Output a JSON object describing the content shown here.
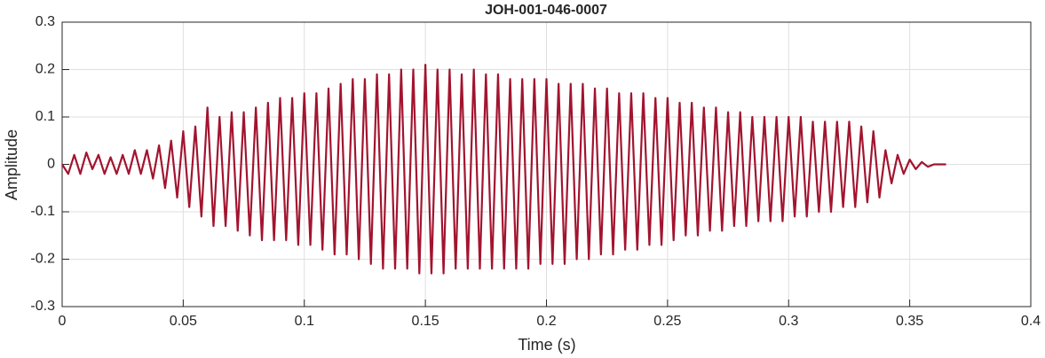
{
  "chart_data": {
    "type": "line",
    "title": "JOH-001-046-0007",
    "x_label": "Time (s)",
    "y_label": "Amplitude",
    "color": "#a2142f",
    "grid": true,
    "xlim": [
      0,
      0.4
    ],
    "xticks": [
      0,
      0.05,
      0.1,
      0.15,
      0.2,
      0.25,
      0.3,
      0.35,
      0.4
    ],
    "ylim": [
      -0.3,
      0.3
    ],
    "yticks": [
      -0.3,
      -0.2,
      -0.1,
      0,
      0.1,
      0.2,
      0.3
    ],
    "x": [
      0,
      0.0025,
      0.005,
      0.0075,
      0.01,
      0.0125,
      0.015,
      0.0175,
      0.02,
      0.0225,
      0.025,
      0.0275,
      0.03,
      0.0325,
      0.035,
      0.0375,
      0.04,
      0.0425,
      0.045,
      0.0475,
      0.05,
      0.0525,
      0.055,
      0.0575,
      0.06,
      0.0625,
      0.065,
      0.0675,
      0.07,
      0.0725,
      0.075,
      0.0775,
      0.08,
      0.0825,
      0.085,
      0.0875,
      0.09,
      0.0925,
      0.095,
      0.0975,
      0.1,
      0.1025,
      0.105,
      0.1075,
      0.11,
      0.1125,
      0.115,
      0.1175,
      0.12,
      0.1225,
      0.125,
      0.1275,
      0.13,
      0.1325,
      0.135,
      0.1375,
      0.14,
      0.1425,
      0.145,
      0.1475,
      0.15,
      0.1525,
      0.155,
      0.1575,
      0.16,
      0.1625,
      0.165,
      0.1675,
      0.17,
      0.1725,
      0.175,
      0.1775,
      0.18,
      0.1825,
      0.185,
      0.1875,
      0.19,
      0.1925,
      0.195,
      0.1975,
      0.2,
      0.2025,
      0.205,
      0.2075,
      0.21,
      0.2125,
      0.215,
      0.2175,
      0.22,
      0.2225,
      0.225,
      0.2275,
      0.23,
      0.2325,
      0.235,
      0.2375,
      0.24,
      0.2425,
      0.245,
      0.2475,
      0.25,
      0.2525,
      0.255,
      0.2575,
      0.26,
      0.2625,
      0.265,
      0.2675,
      0.27,
      0.2725,
      0.275,
      0.2775,
      0.28,
      0.2825,
      0.285,
      0.2875,
      0.29,
      0.2925,
      0.295,
      0.2975,
      0.3,
      0.3025,
      0.305,
      0.3075,
      0.31,
      0.3125,
      0.315,
      0.3175,
      0.32,
      0.3225,
      0.325,
      0.3275,
      0.33,
      0.3325,
      0.335,
      0.3375,
      0.34,
      0.3425,
      0.345,
      0.3475,
      0.35,
      0.3525,
      0.355,
      0.3575,
      0.36,
      0.3625,
      0.365
    ],
    "values": [
      0,
      -0.02,
      0.02,
      -0.02,
      0.025,
      -0.01,
      0.02,
      -0.02,
      0.015,
      -0.02,
      0.02,
      -0.02,
      0.03,
      -0.02,
      0.03,
      -0.03,
      0.04,
      -0.05,
      0.05,
      -0.07,
      0.07,
      -0.09,
      0.08,
      -0.11,
      0.12,
      -0.13,
      0.1,
      -0.13,
      0.11,
      -0.14,
      0.11,
      -0.15,
      0.12,
      -0.16,
      0.13,
      -0.16,
      0.14,
      -0.16,
      0.14,
      -0.17,
      0.15,
      -0.17,
      0.15,
      -0.18,
      0.16,
      -0.19,
      0.17,
      -0.19,
      0.18,
      -0.2,
      0.18,
      -0.21,
      0.19,
      -0.22,
      0.19,
      -0.22,
      0.2,
      -0.22,
      0.2,
      -0.23,
      0.21,
      -0.23,
      0.2,
      -0.23,
      0.2,
      -0.22,
      0.19,
      -0.22,
      0.2,
      -0.22,
      0.19,
      -0.22,
      0.19,
      -0.22,
      0.18,
      -0.22,
      0.18,
      -0.22,
      0.18,
      -0.21,
      0.18,
      -0.21,
      0.17,
      -0.21,
      0.17,
      -0.2,
      0.17,
      -0.2,
      0.16,
      -0.19,
      0.16,
      -0.19,
      0.15,
      -0.18,
      0.15,
      -0.18,
      0.15,
      -0.17,
      0.14,
      -0.17,
      0.14,
      -0.16,
      0.13,
      -0.15,
      0.13,
      -0.15,
      0.12,
      -0.14,
      0.12,
      -0.14,
      0.11,
      -0.13,
      0.11,
      -0.13,
      0.1,
      -0.12,
      0.1,
      -0.12,
      0.1,
      -0.12,
      0.1,
      -0.11,
      0.1,
      -0.11,
      0.09,
      -0.1,
      0.09,
      -0.1,
      0.09,
      -0.09,
      0.09,
      -0.09,
      0.08,
      -0.08,
      0.07,
      -0.07,
      0.03,
      -0.04,
      0.02,
      -0.02,
      0.01,
      -0.01,
      0.005,
      -0.005,
      0,
      0,
      0
    ]
  }
}
